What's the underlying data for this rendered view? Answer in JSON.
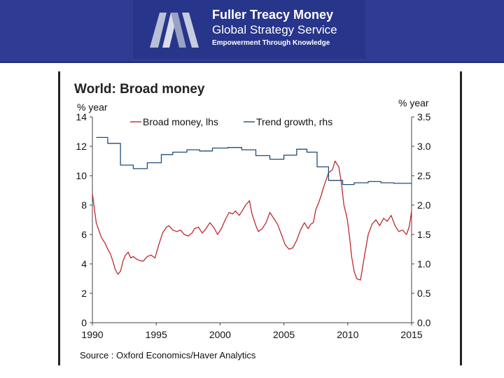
{
  "header": {
    "brand_title": "Fuller Treacy Money",
    "brand_subtitle": "Global Strategy Service",
    "tagline": "Empowerment Through Knowledge",
    "logo_icon": "mm-logo-icon"
  },
  "colors": {
    "banner": "#2e3c94",
    "broad_money": "#c0282d",
    "trend_growth": "#1f4e79"
  },
  "chart_data": {
    "type": "line",
    "title": "World: Broad money",
    "ylabel_left": "% year",
    "ylabel_right": "% year",
    "x_ticks": [
      "1990",
      "1995",
      "2000",
      "2005",
      "2010",
      "2015"
    ],
    "xlim": [
      1990,
      2015
    ],
    "ylim_left": [
      0,
      14
    ],
    "ylim_right": [
      0,
      3.5
    ],
    "y_ticks_left": [
      "0",
      "2",
      "4",
      "6",
      "8",
      "10",
      "12",
      "14"
    ],
    "y_ticks_right": [
      "0.0",
      "0.5",
      "1.0",
      "1.5",
      "2.0",
      "2.5",
      "3.0",
      "3.5"
    ],
    "legend_placement": "top",
    "series": [
      {
        "name": "Broad money, lhs",
        "axis": "left",
        "x": [
          1990.0,
          1990.15,
          1990.3,
          1990.5,
          1990.7,
          1991.0,
          1991.2,
          1991.4,
          1991.6,
          1991.8,
          1992.0,
          1992.2,
          1992.4,
          1992.6,
          1992.8,
          1993.0,
          1993.2,
          1993.5,
          1993.8,
          1994.0,
          1994.3,
          1994.6,
          1994.9,
          1995.2,
          1995.5,
          1995.8,
          1996.0,
          1996.3,
          1996.6,
          1996.9,
          1997.2,
          1997.5,
          1997.8,
          1998.0,
          1998.3,
          1998.6,
          1998.9,
          1999.2,
          1999.5,
          1999.8,
          2000.1,
          2000.4,
          2000.7,
          2001.0,
          2001.2,
          2001.5,
          2001.8,
          2002.0,
          2002.3,
          2002.5,
          2002.8,
          2003.0,
          2003.3,
          2003.6,
          2003.9,
          2004.2,
          2004.5,
          2004.8,
          2005.1,
          2005.4,
          2005.7,
          2006.0,
          2006.3,
          2006.6,
          2006.9,
          2007.1,
          2007.3,
          2007.5,
          2007.7,
          2007.9,
          2008.1,
          2008.3,
          2008.5,
          2008.8,
          2009.0,
          2009.3,
          2009.5,
          2009.7,
          2009.9,
          2010.0,
          2010.15,
          2010.3,
          2010.5,
          2010.7,
          2011.0,
          2011.3,
          2011.6,
          2011.9,
          2012.2,
          2012.5,
          2012.8,
          2013.1,
          2013.4,
          2013.7,
          2014.0,
          2014.3,
          2014.6,
          2014.8,
          2014.9,
          2015.0
        ],
        "values": [
          8.8,
          7.8,
          6.8,
          6.3,
          5.8,
          5.4,
          5.0,
          4.7,
          4.2,
          3.6,
          3.3,
          3.5,
          4.2,
          4.6,
          4.8,
          4.4,
          4.5,
          4.3,
          4.2,
          4.2,
          4.5,
          4.6,
          4.4,
          5.3,
          6.1,
          6.5,
          6.6,
          6.3,
          6.2,
          6.3,
          6.0,
          5.9,
          6.1,
          6.4,
          6.5,
          6.1,
          6.4,
          6.8,
          6.5,
          6.0,
          6.4,
          7.0,
          7.5,
          7.4,
          7.6,
          7.3,
          7.7,
          8.0,
          8.3,
          7.4,
          6.6,
          6.2,
          6.4,
          6.8,
          7.5,
          7.1,
          6.7,
          6.0,
          5.3,
          5.0,
          5.1,
          5.6,
          6.3,
          6.8,
          6.4,
          6.7,
          6.8,
          7.7,
          8.1,
          8.6,
          9.2,
          9.7,
          10.2,
          10.4,
          11.0,
          10.6,
          9.5,
          8.0,
          7.3,
          6.8,
          5.8,
          4.5,
          3.5,
          3.0,
          2.9,
          4.5,
          6.0,
          6.7,
          7.0,
          6.6,
          7.1,
          6.9,
          7.3,
          6.6,
          6.2,
          6.3,
          6.0,
          6.5,
          7.0,
          7.6
        ]
      },
      {
        "name": "Trend growth, rhs",
        "axis": "right",
        "x": [
          1990.3,
          1991.2,
          1991.2,
          1992.2,
          1992.2,
          1993.2,
          1993.2,
          1994.3,
          1994.3,
          1995.4,
          1995.4,
          1996.3,
          1996.3,
          1997.4,
          1997.4,
          1998.4,
          1998.4,
          1999.4,
          1999.4,
          2000.6,
          2000.6,
          2001.7,
          2001.7,
          2002.8,
          2002.8,
          2003.9,
          2003.9,
          2005.0,
          2005.0,
          2006.0,
          2006.0,
          2006.8,
          2006.8,
          2007.6,
          2007.6,
          2008.5,
          2008.5,
          2009.6,
          2009.6,
          2010.5,
          2010.5,
          2011.6,
          2011.6,
          2012.6,
          2012.6,
          2013.6,
          2013.6,
          2015.0
        ],
        "values": [
          3.15,
          3.15,
          3.05,
          3.05,
          2.68,
          2.68,
          2.62,
          2.62,
          2.72,
          2.72,
          2.86,
          2.86,
          2.9,
          2.9,
          2.94,
          2.94,
          2.92,
          2.92,
          2.97,
          2.97,
          2.98,
          2.98,
          2.94,
          2.94,
          2.84,
          2.84,
          2.78,
          2.78,
          2.85,
          2.85,
          2.95,
          2.95,
          2.9,
          2.9,
          2.65,
          2.65,
          2.42,
          2.42,
          2.35,
          2.35,
          2.38,
          2.38,
          2.4,
          2.4,
          2.38,
          2.38,
          2.37,
          2.37
        ]
      }
    ],
    "source": "Source : Oxford Economics/Haver Analytics"
  }
}
